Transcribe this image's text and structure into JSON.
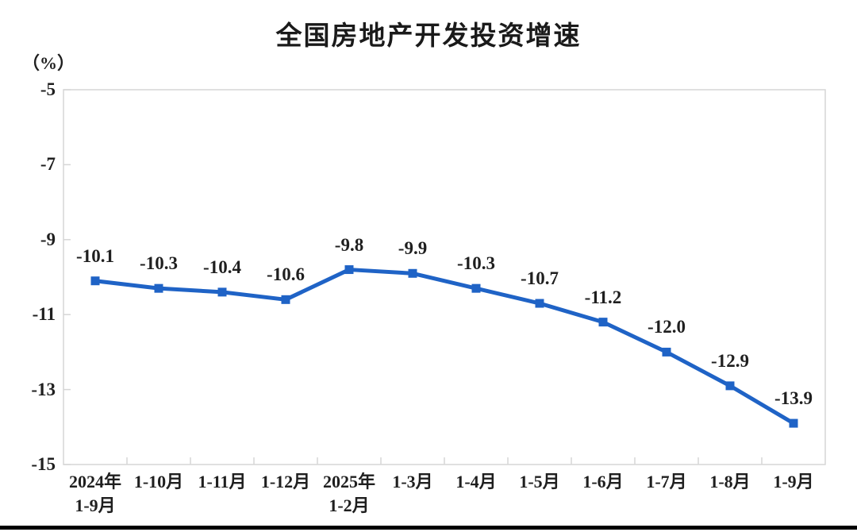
{
  "chart_data": {
    "type": "line",
    "title": "全国房地产开发投资增速",
    "ylabel": "（%）",
    "categories": [
      "2024年\n1-9月",
      "1-10月",
      "1-11月",
      "1-12月",
      "2025年\n1-2月",
      "1-3月",
      "1-4月",
      "1-5月",
      "1-6月",
      "1-7月",
      "1-8月",
      "1-9月"
    ],
    "values": [
      -10.1,
      -10.3,
      -10.4,
      -10.6,
      -9.8,
      -9.9,
      -10.3,
      -10.7,
      -11.2,
      -12.0,
      -12.9,
      -13.9
    ],
    "value_labels": [
      "-10.1",
      "-10.3",
      "-10.4",
      "-10.6",
      "-9.8",
      "-9.9",
      "-10.3",
      "-10.7",
      "-11.2",
      "-12.0",
      "-12.9",
      "-13.9"
    ],
    "ylim": [
      -15,
      -5
    ],
    "yticks": [
      -5,
      -7,
      -9,
      -11,
      -13,
      -15
    ],
    "grid": false,
    "legend": "none",
    "marker": "square",
    "line_color": "#1F63C6",
    "axis_color": "#D6D6D6",
    "label_color": "#1F1F1F"
  }
}
